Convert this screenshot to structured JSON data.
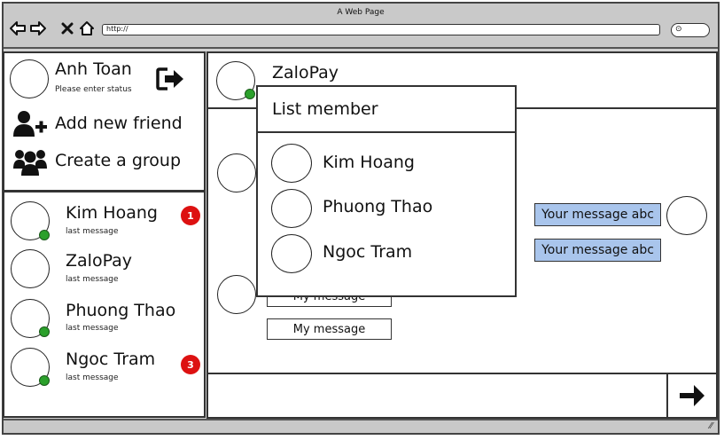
{
  "window": {
    "title": "A Web Page",
    "url": "http://"
  },
  "profile": {
    "name": "Anh Toan",
    "status": "Please enter status"
  },
  "actions": {
    "add_friend": "Add new friend",
    "create_group": "Create a group"
  },
  "contacts": [
    {
      "name": "Kim Hoang",
      "sub": "last message",
      "badge": "1",
      "online": true
    },
    {
      "name": "ZaloPay",
      "sub": "last message",
      "badge": "",
      "online": false
    },
    {
      "name": "Phuong Thao",
      "sub": "last message",
      "badge": "",
      "online": true
    },
    {
      "name": "Ngoc Tram",
      "sub": "last message",
      "badge": "3",
      "online": true
    }
  ],
  "chat": {
    "title": "ZaloPay",
    "messages": {
      "mine_1": "My message",
      "mine_2": "My message",
      "yours_1": "Your message abc",
      "yours_2": "Your message abc"
    },
    "input_value": ""
  },
  "member_popup": {
    "title": "List member",
    "members": [
      "Kim Hoang",
      "Phuong Thao",
      "Ngoc Tram"
    ]
  },
  "colors": {
    "badge": "#dd1111",
    "online": "#2ba02b",
    "bubble_other": "#a9c5ec",
    "chrome": "#c9c9c9"
  }
}
